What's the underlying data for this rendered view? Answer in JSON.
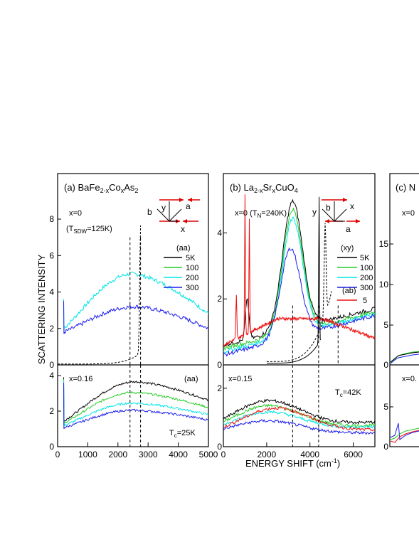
{
  "figure": {
    "ylabel": "SCATTERING INTENSITY",
    "xlabel_main": "ENERGY SHIFT (cm",
    "xlabel_sup": "-1",
    "xlabel_end": ")"
  },
  "colors": {
    "K5": "#000000",
    "K100": "#22cc22",
    "K200": "#00e5e5",
    "K300": "#1a1aee",
    "ab": "#ee1111",
    "arrow": "#dd0000"
  },
  "chart_data": [
    {
      "id": "a",
      "type": "line",
      "title_prefix": "(a)  BaFe",
      "title_sub": "2-x",
      "title_mid": "Co",
      "title_sub2": "x",
      "title_end": "As",
      "title_sub3": "2",
      "xlim": [
        0,
        5000
      ],
      "xticks": [
        "0",
        "1000",
        "2000",
        "3000",
        "4000",
        "5000"
      ],
      "top": {
        "label": "x=0",
        "label2": "(T",
        "label2_sub": "SDW",
        "label2_end": "=125K)",
        "ylim": [
          0,
          10.5
        ],
        "yticks": [
          "0",
          "2",
          "4",
          "6",
          "8"
        ],
        "legend_title": "(aa)",
        "legend": [
          "5K",
          "100",
          "200",
          "300"
        ],
        "axes_labels": [
          "b",
          "y",
          "a",
          "x"
        ],
        "series": [
          {
            "name": "200",
            "peak_x": 2500,
            "peak_y": 5.0,
            "base": 1.8,
            "end_y": 2.8
          },
          {
            "name": "300",
            "peak_x": 2600,
            "peak_y": 3.2,
            "base": 1.7,
            "end_y": 2.0
          }
        ],
        "dashed_curve": {
          "x_peak": 2750,
          "y_peak": 7.0
        },
        "vlines": [
          2400,
          2750
        ]
      },
      "bottom": {
        "label": "x=0.16",
        "label_right": "(aa)",
        "ylim": [
          0,
          4.6
        ],
        "yticks": [
          "0",
          "2",
          "4"
        ],
        "tc": "T",
        "tc_sub": "c",
        "tc_end": "=25K",
        "series": [
          {
            "name": "5K",
            "peak_x": 2600,
            "peak_y": 3.65,
            "base": 1.3,
            "end_y": 2.6
          },
          {
            "name": "100",
            "peak_x": 2500,
            "peak_y": 3.05,
            "base": 1.2,
            "end_y": 2.2
          },
          {
            "name": "200",
            "peak_x": 2500,
            "peak_y": 2.45,
            "base": 1.1,
            "end_y": 1.8
          },
          {
            "name": "300",
            "peak_x": 2500,
            "peak_y": 2.05,
            "base": 1.0,
            "end_y": 1.5
          }
        ],
        "vlines": [
          2400,
          2750
        ]
      }
    },
    {
      "id": "b",
      "type": "line",
      "title_prefix": "(b)  La",
      "title_sub": "2-x",
      "title_mid": "Sr",
      "title_sub2": "x",
      "title_end": "CuO",
      "title_sub3": "4",
      "xlim": [
        0,
        7000
      ],
      "xticks": [
        "0",
        "2000",
        "4000",
        "6000"
      ],
      "top": {
        "label": "x=0 (T",
        "label_sub": "N",
        "label_end": "=240K)",
        "ylim": [
          0,
          5.8
        ],
        "yticks": [
          "0",
          "2",
          "4"
        ],
        "legend_title": "(xy)",
        "legend": [
          "5K",
          "100",
          "200",
          "300"
        ],
        "legend2_title": "(ab)",
        "legend2": [
          "5"
        ],
        "axes_labels": [
          "b",
          "y",
          "x",
          "a"
        ],
        "series": [
          {
            "name": "5K",
            "peak_x": 3200,
            "peak_y": 4.45,
            "base": 0.6,
            "end_y": 1.7
          },
          {
            "name": "100",
            "peak_x": 3200,
            "peak_y": 4.2,
            "base": 0.5,
            "end_y": 1.6
          },
          {
            "name": "200",
            "peak_x": 3200,
            "peak_y": 3.9,
            "base": 0.4,
            "end_y": 1.55
          },
          {
            "name": "300",
            "peak_x": 3100,
            "peak_y": 3.0,
            "base": 0.3,
            "end_y": 1.5
          }
        ],
        "vlines": [
          3200,
          4400,
          5300
        ]
      },
      "bottom": {
        "label": "x=0.15",
        "ylim": [
          0,
          2.8
        ],
        "yticks": [
          "0",
          "2"
        ],
        "tc": "T",
        "tc_sub": "c",
        "tc_end": "=42K",
        "series": [
          {
            "name": "5K",
            "peak_x": 2000,
            "peak_y": 1.85,
            "base": 0.9,
            "end_y": 0.6
          },
          {
            "name": "100",
            "peak_x": 2000,
            "peak_y": 1.65,
            "base": 0.8,
            "end_y": 0.55
          },
          {
            "name": "200",
            "peak_x": 2000,
            "peak_y": 1.45,
            "base": 0.8,
            "end_y": 0.5
          },
          {
            "name": "300",
            "peak_x": 2000,
            "peak_y": 1.15,
            "base": 0.7,
            "end_y": 0.35
          },
          {
            "name": "5 (ab)",
            "peak_x": 2400,
            "peak_y": 1.55,
            "base": 0.7,
            "end_y": 0.45
          }
        ],
        "vlines": [
          3200,
          4400
        ]
      }
    },
    {
      "id": "c",
      "type": "line",
      "title_prefix": "(c)  N",
      "top": {
        "label": "x=0",
        "yticks": [
          "0",
          "5",
          "10",
          "15"
        ]
      },
      "bottom": {
        "label": "x=0.",
        "yticks": [
          "0",
          "5"
        ]
      }
    }
  ]
}
